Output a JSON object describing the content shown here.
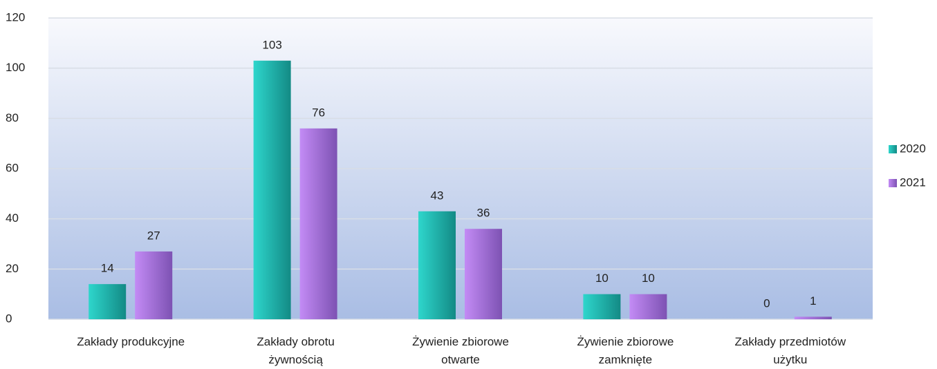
{
  "chart_data": {
    "type": "bar",
    "categories": [
      "Zakłady produkcyjne",
      "Zakłady obrotu żywnością",
      "Żywienie zbiorowe otwarte",
      "Żywienie zbiorowe zamknięte",
      "Zakłady przedmiotów użytku"
    ],
    "series": [
      {
        "name": "2020",
        "color": "#1fb5ad",
        "values": [
          14,
          103,
          43,
          10,
          0
        ]
      },
      {
        "name": "2021",
        "color": "#9b6fd6",
        "values": [
          27,
          76,
          36,
          10,
          1
        ]
      }
    ],
    "ylim": [
      0,
      120
    ],
    "yticks": [
      0,
      20,
      40,
      60,
      80,
      100,
      120
    ],
    "grid": true,
    "legend": "right"
  }
}
